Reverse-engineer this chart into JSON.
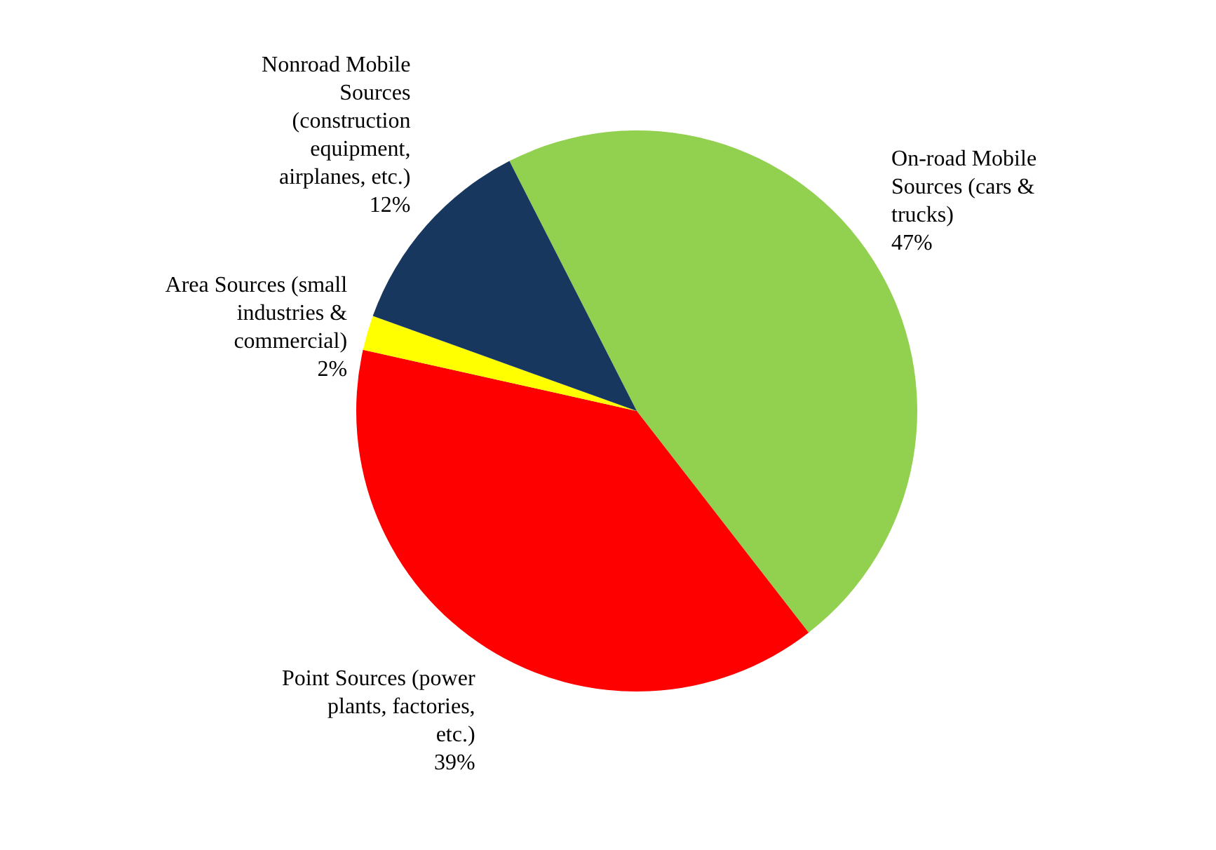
{
  "chart_data": {
    "type": "pie",
    "categories": [
      "On-road Mobile Sources (cars & trucks)",
      "Point Sources (power plants, factories, etc.)",
      "Area Sources (small industries & commercial)",
      "Nonroad Mobile Sources (construction equipment, airplanes, etc.)"
    ],
    "values": [
      47,
      39,
      2,
      12
    ],
    "colors": [
      "#92d050",
      "#ff0000",
      "#ffff00",
      "#17375e"
    ],
    "value_labels": [
      "47%",
      "39%",
      "2%",
      "12%"
    ],
    "legend": false
  }
}
